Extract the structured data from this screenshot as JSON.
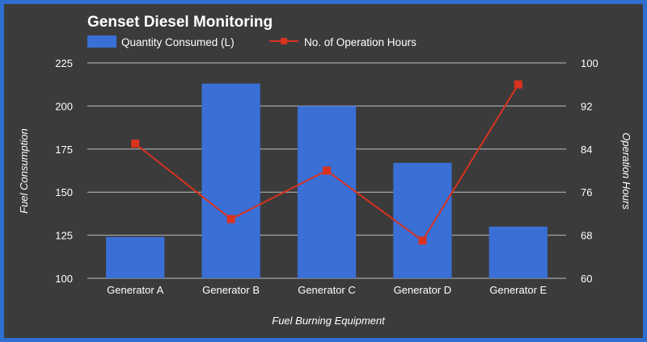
{
  "colors": {
    "background": "#3b3b3b",
    "border": "#2f6fd1",
    "bar": "#3a6fd6",
    "line": "#d9321f",
    "grid": "#bdbdbd",
    "text": "#ffffff"
  },
  "chart_data": {
    "type": "bar",
    "title": "Genset Diesel Monitoring",
    "categories": [
      "Generator A",
      "Generator B",
      "Generator C",
      "Generator D",
      "Generator E"
    ],
    "series": [
      {
        "name": "Quantity Consumed (L)",
        "type": "bar",
        "axis": "left",
        "values": [
          124,
          213,
          200,
          167,
          130
        ]
      },
      {
        "name": "No. of Operation Hours",
        "type": "line",
        "axis": "right",
        "values": [
          85,
          71,
          80,
          67,
          96
        ]
      }
    ],
    "xlabel": "Fuel Burning Equipment",
    "ylabel": "Fuel Consumption",
    "y2label": "Operation Hours",
    "ylim": [
      100,
      225
    ],
    "y2lim": [
      60,
      100
    ],
    "yticks": [
      100,
      125,
      150,
      175,
      200,
      225
    ],
    "y2ticks": [
      60,
      68,
      76,
      84,
      92,
      100
    ],
    "grid": true,
    "legend_position": "top"
  }
}
